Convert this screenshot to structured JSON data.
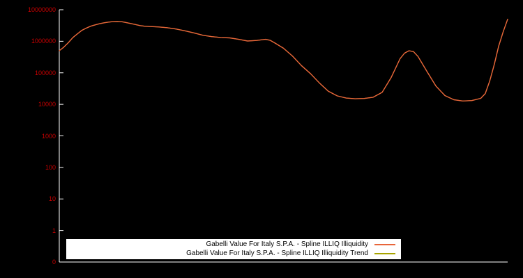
{
  "chart_data": {
    "type": "line",
    "title": "",
    "background_color": "#000000",
    "axis_color": "#ffffff",
    "tick_label_color": "#cc0000",
    "legend": {
      "position": "bottom-center",
      "background": "#ffffff",
      "text_color": "#000000"
    },
    "y_scale": "log",
    "y_max": 10000000,
    "y_tick_labels": [
      "10000000",
      "1000000",
      "100000",
      "10000",
      "1000",
      "100",
      "10",
      "1",
      "0"
    ],
    "x_tick_labels": [],
    "x_percent": [
      0,
      1,
      2,
      3,
      4,
      5,
      6,
      7,
      8,
      9,
      10,
      11,
      12,
      13,
      14,
      15,
      16,
      17,
      18,
      19,
      20,
      22,
      24,
      26,
      28,
      30,
      32,
      34,
      36,
      38,
      40,
      42,
      44,
      46,
      47,
      48,
      50,
      52,
      54,
      56,
      58,
      60,
      62,
      64,
      66,
      68,
      70,
      72,
      74,
      76,
      77,
      78,
      79,
      80,
      82,
      84,
      86,
      88,
      90,
      92,
      94,
      95,
      96,
      97,
      98,
      99,
      100
    ],
    "series": [
      {
        "name": "Gabelli Value For Italy S.P.A. - Spline ILLIQ Illiquidity",
        "color": "#e8653a",
        "values": [
          500000,
          650000,
          900000,
          1300000,
          1700000,
          2200000,
          2600000,
          3000000,
          3300000,
          3600000,
          3850000,
          4050000,
          4200000,
          4250000,
          4150000,
          3900000,
          3650000,
          3400000,
          3150000,
          3000000,
          2950000,
          2850000,
          2700000,
          2450000,
          2150000,
          1850000,
          1550000,
          1400000,
          1320000,
          1280000,
          1150000,
          1020000,
          1060000,
          1150000,
          1080000,
          900000,
          600000,
          340000,
          170000,
          95000,
          48000,
          26000,
          18500,
          15800,
          15000,
          15300,
          16800,
          24000,
          70000,
          280000,
          420000,
          500000,
          470000,
          330000,
          110000,
          38000,
          19000,
          14000,
          12800,
          13200,
          15500,
          22000,
          55000,
          180000,
          700000,
          2000000,
          5000000
        ]
      },
      {
        "name": "Gabelli Value For Italy S.P.A. - Spline ILLIQ Illiquidity Trend",
        "color": "#a8a400",
        "values": [
          500000,
          650000,
          900000,
          1300000,
          1700000,
          2200000,
          2600000,
          3000000,
          3300000,
          3600000,
          3850000,
          4050000,
          4200000,
          4250000,
          4150000,
          3900000,
          3650000,
          3400000,
          3150000,
          3000000,
          2950000,
          2850000,
          2700000,
          2450000,
          2150000,
          1850000,
          1550000,
          1400000,
          1320000,
          1280000,
          1150000,
          1020000,
          1060000,
          1150000,
          1080000,
          900000,
          600000,
          340000,
          170000,
          95000,
          48000,
          26000,
          18500,
          15800,
          15000,
          15300,
          16800,
          24000,
          70000,
          280000,
          420000,
          500000,
          470000,
          330000,
          110000,
          38000,
          19000,
          14000,
          12800,
          13200,
          15500,
          22000,
          55000,
          180000,
          700000,
          2000000,
          5000000
        ]
      }
    ]
  }
}
